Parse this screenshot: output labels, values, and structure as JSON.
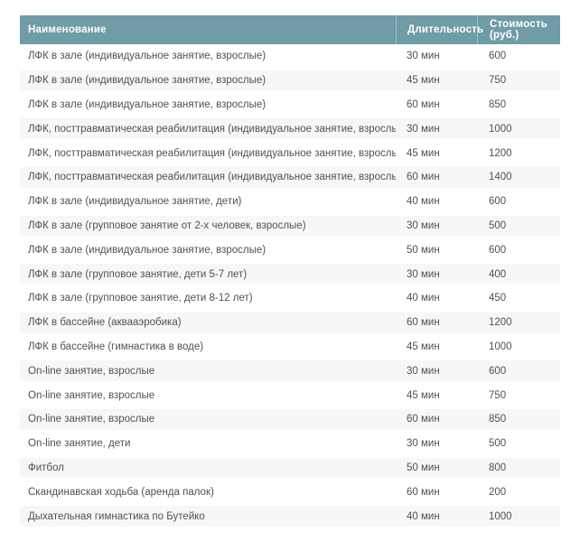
{
  "colors": {
    "header_bg": "#6F9CA6",
    "header_text": "#ffffff",
    "row_stripe": "#f7f7f7",
    "body_text": "#4d5254"
  },
  "table": {
    "headers": {
      "name": "Наименование",
      "duration": "Длительность",
      "cost": "Стоимость (руб.)"
    },
    "rows": [
      {
        "name": "ЛФК в зале (индивидуальное занятие, взрослые)",
        "duration": "30 мин",
        "cost": "600"
      },
      {
        "name": "ЛФК в зале (индивидуальное занятие, взрослые)",
        "duration": "45 мин",
        "cost": "750"
      },
      {
        "name": "ЛФК в зале (индивидуальное занятие, взрослые)",
        "duration": "60 мин",
        "cost": "850"
      },
      {
        "name": "ЛФК, посттравматическая реабилитация (индивидуальное занятие, взрослые)",
        "duration": "30 мин",
        "cost": "1000"
      },
      {
        "name": "ЛФК, посттравматическая реабилитация (индивидуальное занятие, взрослые)",
        "duration": "45 мин",
        "cost": "1200"
      },
      {
        "name": "ЛФК, посттравматическая реабилитация (индивидуальное занятие, взрослые)",
        "duration": "60 мин",
        "cost": "1400"
      },
      {
        "name": "ЛФК в зале (индивидуальное занятие, дети)",
        "duration": "40 мин",
        "cost": "600"
      },
      {
        "name": "ЛФК в зале (групповое занятие от 2-х человек, взрослые)",
        "duration": "30 мин",
        "cost": "500"
      },
      {
        "name": "ЛФК в зале (индивидуальное занятие, взрослые)",
        "duration": "50 мин",
        "cost": "600"
      },
      {
        "name": "ЛФК в зале (групповое занятие, дети 5-7 лет)",
        "duration": "30 мин",
        "cost": "400"
      },
      {
        "name": "ЛФК в зале (групповое занятие, дети 8-12 лет)",
        "duration": "40 мин",
        "cost": "450"
      },
      {
        "name": "ЛФК в бассейне (аквааэробика)",
        "duration": "60 мин",
        "cost": "1200"
      },
      {
        "name": "ЛФК в бассейне (гимнастика в воде)",
        "duration": "45 мин",
        "cost": "1000"
      },
      {
        "name": "On-line занятие, взрослые",
        "duration": "30 мин",
        "cost": "600"
      },
      {
        "name": "On-line занятие, взрослые",
        "duration": "45 мин",
        "cost": "750"
      },
      {
        "name": "On-line занятие, взрослые",
        "duration": "60 мин",
        "cost": "850"
      },
      {
        "name": "On-line занятие, дети",
        "duration": "30 мин",
        "cost": "500"
      },
      {
        "name": "Фитбол",
        "duration": "50 мин",
        "cost": "800"
      },
      {
        "name": "Скандинавская ходьба (аренда палок)",
        "duration": "60 мин",
        "cost": "200"
      },
      {
        "name": "Дыхательная гимнастика по Бутейко",
        "duration": "40 мин",
        "cost": "1000"
      }
    ]
  }
}
